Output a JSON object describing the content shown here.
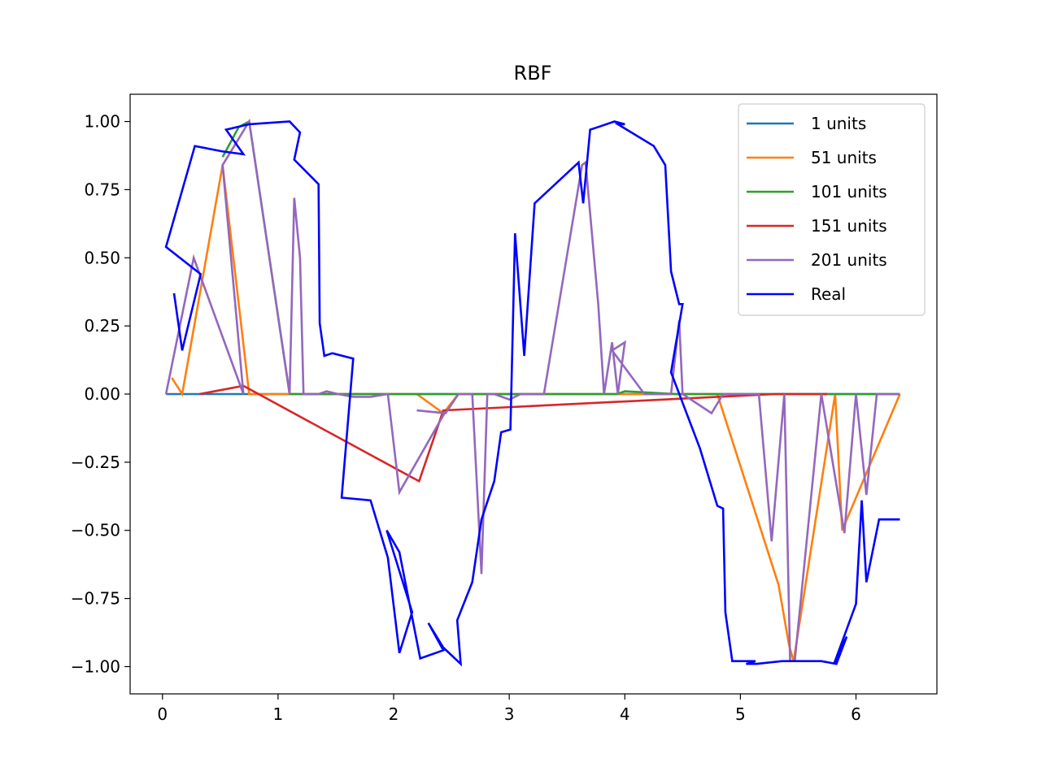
{
  "chart_data": {
    "type": "line",
    "title": "RBF",
    "xlabel": "",
    "ylabel": "",
    "xlim": [
      -0.28,
      6.7
    ],
    "ylim": [
      -1.1,
      1.1
    ],
    "xticks": [
      0,
      1,
      2,
      3,
      4,
      5,
      6
    ],
    "xtick_labels": [
      "0",
      "1",
      "2",
      "3",
      "4",
      "5",
      "6"
    ],
    "yticks": [
      1.0,
      0.75,
      0.5,
      0.25,
      0.0,
      -0.25,
      -0.5,
      -0.75,
      -1.0
    ],
    "ytick_labels": [
      "1.00",
      "0.75",
      "0.50",
      "0.25",
      "0.00",
      "−0.25",
      "−0.50",
      "−0.75",
      "−1.00"
    ],
    "grid": false,
    "legend_position": "top-right",
    "series": [
      {
        "name": "1 units",
        "color": "#1f77b4",
        "x": [
          0.03,
          0.7,
          0.75,
          1.1,
          2.5,
          4.0,
          6.38
        ],
        "y": [
          0.0,
          0.0,
          0.0,
          0.0,
          0.0,
          0.0,
          0.0
        ]
      },
      {
        "name": "51 units",
        "color": "#ff7f0e",
        "x": [
          0.08,
          0.17,
          0.52,
          0.75,
          1.1,
          2.2,
          2.43,
          2.56,
          3.5,
          4.8,
          5.33,
          5.42,
          5.46,
          5.82,
          5.88,
          6.38
        ],
        "y": [
          0.06,
          0.0,
          0.84,
          0.0,
          0.0,
          0.0,
          -0.07,
          0.0,
          0.0,
          0.0,
          -0.7,
          -0.92,
          -0.98,
          0.0,
          -0.5,
          0.0
        ]
      },
      {
        "name": "101 units",
        "color": "#2ca02c",
        "x": [
          0.52,
          0.66,
          0.75,
          1.1,
          3.63,
          3.93,
          4.0,
          4.45,
          6.38
        ],
        "y": [
          0.87,
          0.98,
          1.0,
          0.0,
          0.0,
          0.0,
          0.01,
          0.0,
          0.0
        ],
        "note_points": []
      },
      {
        "name": "151 units",
        "color": "#d62728",
        "x": [
          0.32,
          0.7,
          2.22,
          2.43,
          5.3,
          5.75
        ],
        "y": [
          0.0,
          0.03,
          -0.32,
          -0.06,
          0.0,
          0.0
        ]
      },
      {
        "name": "201 units",
        "color": "#9467bd",
        "x": [
          0.03,
          0.27,
          0.7,
          0.52,
          0.75,
          1.1,
          1.14,
          1.19,
          1.22,
          1.31,
          1.35,
          1.42,
          1.52,
          1.65,
          1.8,
          1.95,
          2.05,
          2.44,
          2.2,
          2.45,
          2.56,
          2.68,
          2.76,
          2.81,
          2.87,
          3.0,
          3.1,
          3.3,
          3.63,
          3.66,
          3.77,
          3.82,
          3.89,
          3.94,
          4.0,
          3.89,
          4.17,
          4.4,
          4.47,
          4.5,
          4.75,
          4.85,
          4.95,
          5.16,
          5.27,
          5.38,
          5.43,
          5.47,
          5.7,
          5.9,
          6.0,
          6.09,
          6.18,
          6.38
        ],
        "y": [
          0.0,
          0.5,
          0.0,
          0.84,
          1.0,
          0.0,
          0.72,
          0.5,
          0.0,
          0.0,
          0.0,
          0.01,
          0.0,
          -0.01,
          -0.01,
          0.0,
          -0.36,
          -0.07,
          -0.06,
          -0.07,
          0.0,
          0.0,
          -0.66,
          0.0,
          0.0,
          -0.02,
          0.0,
          0.0,
          0.84,
          0.85,
          0.33,
          0.0,
          0.19,
          0.0,
          0.19,
          0.16,
          0.0,
          0.0,
          0.27,
          0.0,
          -0.07,
          0.0,
          0.0,
          0.0,
          -0.54,
          0.0,
          -0.98,
          -0.98,
          0.0,
          -0.51,
          0.0,
          -0.37,
          0.0,
          0.0
        ]
      },
      {
        "name": "Real",
        "color": "#0000ff",
        "x": [
          0.1,
          0.17,
          0.33,
          0.03,
          0.28,
          0.52,
          0.7,
          0.55,
          0.75,
          1.1,
          1.19,
          1.14,
          1.35,
          1.36,
          1.4,
          1.47,
          1.65,
          1.55,
          1.8,
          1.95,
          2.05,
          2.16,
          1.94,
          2.05,
          2.23,
          2.43,
          2.3,
          2.43,
          2.58,
          2.55,
          2.68,
          2.76,
          2.87,
          2.93,
          3.01,
          3.05,
          3.13,
          3.22,
          3.6,
          3.64,
          3.7,
          3.77,
          3.91,
          4.0,
          3.94,
          4.25,
          4.35,
          4.4,
          4.47,
          4.5,
          4.4,
          4.65,
          4.8,
          4.85,
          4.87,
          4.93,
          5.13,
          5.05,
          5.14,
          5.36,
          5.45,
          5.7,
          5.83,
          5.92,
          5.81,
          6.0,
          6.05,
          6.09,
          6.2,
          6.38
        ],
        "y": [
          0.37,
          0.16,
          0.44,
          0.54,
          0.91,
          0.89,
          0.88,
          0.97,
          0.99,
          1.0,
          0.96,
          0.86,
          0.77,
          0.26,
          0.14,
          0.15,
          0.13,
          -0.38,
          -0.39,
          -0.6,
          -0.95,
          -0.8,
          -0.5,
          -0.58,
          -0.97,
          -0.94,
          -0.84,
          -0.93,
          -0.99,
          -0.83,
          -0.69,
          -0.46,
          -0.32,
          -0.14,
          -0.13,
          0.59,
          0.14,
          0.7,
          0.85,
          0.7,
          0.97,
          0.98,
          1.0,
          0.99,
          0.99,
          0.91,
          0.84,
          0.45,
          0.33,
          0.33,
          0.08,
          -0.2,
          -0.41,
          -0.42,
          -0.8,
          -0.98,
          -0.98,
          -0.99,
          -0.99,
          -0.98,
          -0.98,
          -0.98,
          -0.99,
          -0.89,
          -0.99,
          -0.77,
          -0.39,
          -0.69,
          -0.46,
          -0.46
        ]
      }
    ]
  }
}
